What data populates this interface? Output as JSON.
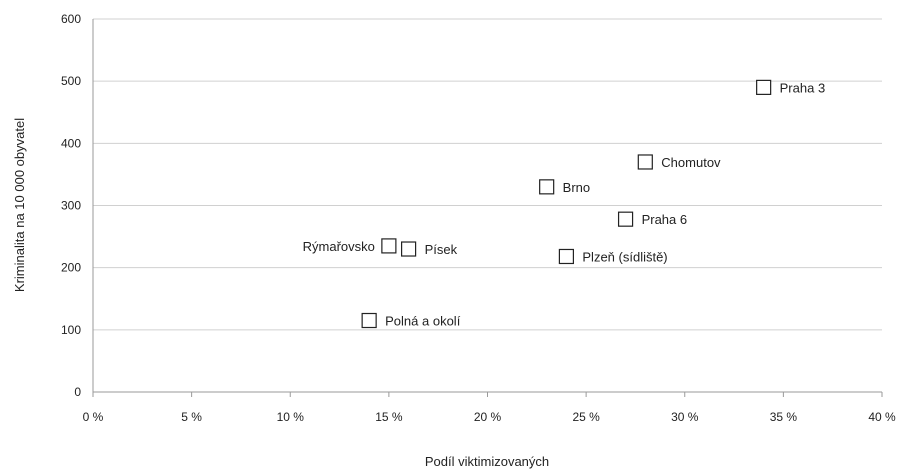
{
  "chart_data": {
    "type": "scatter",
    "title": "",
    "xlabel": "Podíl viktimizovaných",
    "ylabel": "Kriminalita na 10 000 obyvatel",
    "xlim": [
      0,
      40
    ],
    "ylim": [
      0,
      600
    ],
    "x_unit": "%",
    "x_ticks": [
      0,
      5,
      10,
      15,
      20,
      25,
      30,
      35,
      40
    ],
    "x_tick_labels": [
      "0 %",
      "5 %",
      "10 %",
      "15 %",
      "20 %",
      "25 %",
      "30 %",
      "35 %",
      "40 %"
    ],
    "y_ticks": [
      0,
      100,
      200,
      300,
      400,
      500,
      600
    ],
    "y_tick_labels": [
      "0",
      "100",
      "200",
      "300",
      "400",
      "500",
      "600"
    ],
    "grid": "horizontal",
    "legend": "none",
    "marker": "open-square",
    "colors": {
      "marker_stroke": "#222222",
      "grid": "#d0d0d0"
    },
    "points": [
      {
        "label": "Praha 3",
        "x": 34,
        "y": 490,
        "label_side": "right"
      },
      {
        "label": "Chomutov",
        "x": 28,
        "y": 370,
        "label_side": "right"
      },
      {
        "label": "Brno",
        "x": 23,
        "y": 330,
        "label_side": "right"
      },
      {
        "label": "Praha 6",
        "x": 27,
        "y": 278,
        "label_side": "right"
      },
      {
        "label": "Rýmařovsko",
        "x": 15,
        "y": 235,
        "label_side": "left"
      },
      {
        "label": "Písek",
        "x": 16,
        "y": 230,
        "label_side": "right"
      },
      {
        "label": "Plzeň (sídliště)",
        "x": 24,
        "y": 218,
        "label_side": "right"
      },
      {
        "label": "Polná a okolí",
        "x": 14,
        "y": 115,
        "label_side": "right"
      }
    ]
  }
}
